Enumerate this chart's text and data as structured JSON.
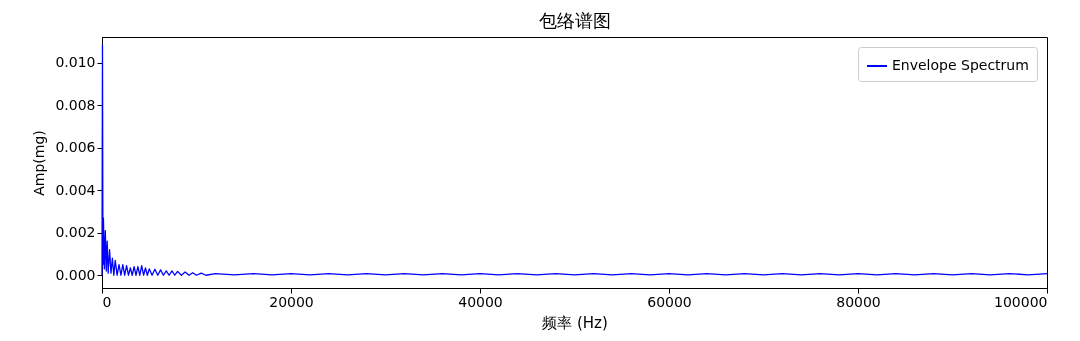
{
  "chart_data": {
    "type": "line",
    "title": "包络谱图",
    "xlabel": "频率 (Hz)",
    "ylabel": "Amp(mg)",
    "xlim": [
      0,
      100000
    ],
    "xticks": [
      0,
      20000,
      40000,
      60000,
      80000,
      100000
    ],
    "ylim": [
      -0.0006,
      0.0112
    ],
    "yticks": [
      {
        "value": 0,
        "label": "0.000"
      },
      {
        "value": 0.002,
        "label": "0.002"
      },
      {
        "value": 0.004,
        "label": "0.004"
      },
      {
        "value": 0.006,
        "label": "0.006"
      },
      {
        "value": 0.008,
        "label": "0.008"
      },
      {
        "value": 0.01,
        "label": "0.010"
      }
    ],
    "grid": false,
    "legend": "top right",
    "marker": "none",
    "line_style": "solid",
    "series": [
      {
        "name": "Envelope Spectrum",
        "color": "#0000ff",
        "x": [
          0,
          50,
          100,
          150,
          250,
          350,
          450,
          550,
          650,
          800,
          950,
          1100,
          1250,
          1400,
          1600,
          1800,
          2000,
          2200,
          2400,
          2600,
          2800,
          3000,
          3200,
          3400,
          3600,
          3800,
          4000,
          4200,
          4400,
          4600,
          4800,
          5000,
          5300,
          5600,
          5900,
          6200,
          6500,
          6800,
          7100,
          7400,
          7700,
          8000,
          8400,
          8800,
          9200,
          9600,
          10000,
          10500,
          11000,
          12000,
          14000,
          16000,
          18000,
          20000,
          22000,
          24000,
          26000,
          28000,
          30000,
          32000,
          34000,
          36000,
          38000,
          40000,
          42000,
          44000,
          46000,
          48000,
          50000,
          52000,
          54000,
          56000,
          58000,
          60000,
          62000,
          64000,
          66000,
          68000,
          70000,
          72000,
          74000,
          76000,
          78000,
          80000,
          82000,
          84000,
          86000,
          88000,
          90000,
          92000,
          94000,
          96000,
          98000,
          100000
        ],
        "values": [
          0,
          0.0108,
          0.0005,
          0.0027,
          0.0003,
          0.0021,
          0.0002,
          0.0016,
          0.0001,
          0.0012,
          0.0001,
          0.0008,
          0,
          0.0007,
          0,
          0.0005,
          0,
          0.0005,
          0,
          0.00045,
          0,
          0.00035,
          0,
          0.0004,
          0,
          0.0004,
          0,
          0.00045,
          0,
          0.00035,
          0,
          0.0003,
          0,
          0.00028,
          0,
          0.00025,
          0,
          0.0002,
          0,
          0.0002,
          0,
          0.00018,
          0,
          0.00015,
          0,
          0.00012,
          0,
          0.0001,
          0,
          8e-05,
          2e-05,
          8e-05,
          2e-05,
          8e-05,
          2e-05,
          8e-05,
          2e-05,
          8e-05,
          2e-05,
          8e-05,
          2e-05,
          8e-05,
          2e-05,
          8e-05,
          2e-05,
          8e-05,
          2e-05,
          8e-05,
          2e-05,
          8e-05,
          2e-05,
          8e-05,
          2e-05,
          8e-05,
          2e-05,
          8e-05,
          2e-05,
          8e-05,
          2e-05,
          8e-05,
          2e-05,
          8e-05,
          2e-05,
          8e-05,
          2e-05,
          8e-05,
          2e-05,
          8e-05,
          2e-05,
          8e-05,
          2e-05,
          8e-05,
          2e-05,
          8e-05
        ]
      }
    ]
  }
}
